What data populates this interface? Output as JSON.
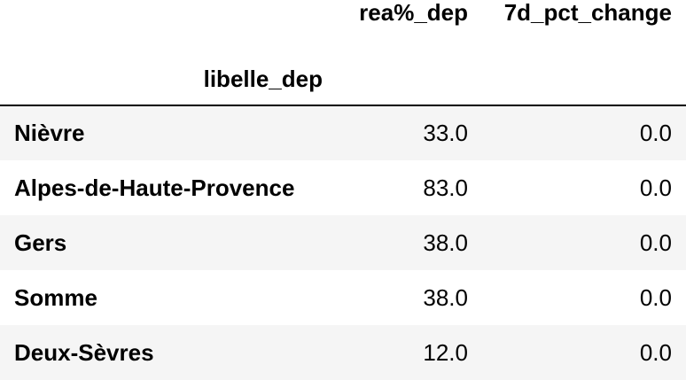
{
  "table": {
    "columns": [
      "rea%_dep",
      "7d_pct_change"
    ],
    "index_name": "libelle_dep",
    "rows": [
      {
        "index": "Nièvre",
        "rea%_dep": "33.0",
        "7d_pct_change": "0.0"
      },
      {
        "index": "Alpes-de-Haute-Provence",
        "rea%_dep": "83.0",
        "7d_pct_change": "0.0"
      },
      {
        "index": "Gers",
        "rea%_dep": "38.0",
        "7d_pct_change": "0.0"
      },
      {
        "index": "Somme",
        "rea%_dep": "38.0",
        "7d_pct_change": "0.0"
      },
      {
        "index": "Deux-Sèvres",
        "rea%_dep": "12.0",
        "7d_pct_change": "0.0"
      }
    ]
  },
  "colors": {
    "row_stripe": "#f5f5f5",
    "background": "#ffffff",
    "text": "#000000",
    "header_rule": "#000000"
  }
}
